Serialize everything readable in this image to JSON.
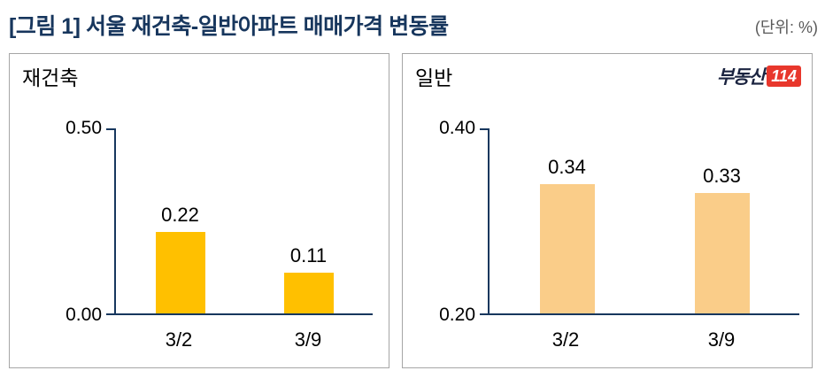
{
  "header": {
    "title": "[그림 1] 서울 재건축-일반아파트 매매가격 변동률",
    "unit": "(단위: %)"
  },
  "logo": {
    "text": "부동산",
    "num": "114"
  },
  "colors": {
    "title": "#17365D",
    "unit_text": "#595959",
    "axis": "#17375E",
    "panel_border": "#A6A6A6",
    "bar_left": "#FFC000",
    "bar_right": "#FACD89",
    "logo_red": "#E8372C",
    "logo_text": "#1B2440"
  },
  "chart_data": [
    {
      "type": "bar",
      "title": "재건축",
      "categories": [
        "3/2",
        "3/9"
      ],
      "values": [
        0.22,
        0.11
      ],
      "value_labels": [
        "0.22",
        "0.11"
      ],
      "ylim": [
        0.0,
        0.5
      ],
      "yticks": [
        "0.50",
        "0.00"
      ],
      "bar_color": "#FFC000",
      "grid": false,
      "legend": "none"
    },
    {
      "type": "bar",
      "title": "일반",
      "categories": [
        "3/2",
        "3/9"
      ],
      "values": [
        0.34,
        0.33
      ],
      "value_labels": [
        "0.34",
        "0.33"
      ],
      "ylim": [
        0.2,
        0.4
      ],
      "yticks": [
        "0.40",
        "0.20"
      ],
      "bar_color": "#FACD89",
      "grid": false,
      "legend": "none"
    }
  ]
}
